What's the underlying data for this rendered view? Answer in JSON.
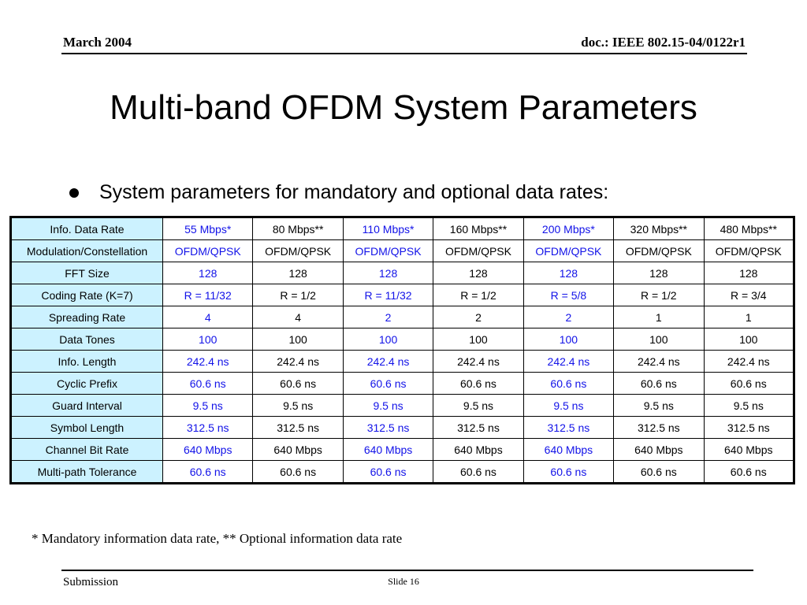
{
  "header": {
    "date": "March 2004",
    "doc_id": "doc.: IEEE 802.15-04/0122r1"
  },
  "title": "Multi-band OFDM System Parameters",
  "bullet": "System parameters for mandatory and optional data rates:",
  "table": {
    "columns": [
      {
        "mandatory": false
      },
      {
        "mandatory": true
      },
      {
        "mandatory": false
      },
      {
        "mandatory": true
      },
      {
        "mandatory": false
      },
      {
        "mandatory": true
      },
      {
        "mandatory": false
      },
      {
        "mandatory": false
      }
    ],
    "rows": [
      {
        "label": "Info. Data Rate",
        "cells": [
          "55 Mbps*",
          "80 Mbps**",
          "110 Mbps*",
          "160 Mbps**",
          "200 Mbps*",
          "320 Mbps**",
          "480 Mbps**"
        ]
      },
      {
        "label": "Modulation/Constellation",
        "cells": [
          "OFDM/QPSK",
          "OFDM/QPSK",
          "OFDM/QPSK",
          "OFDM/QPSK",
          "OFDM/QPSK",
          "OFDM/QPSK",
          "OFDM/QPSK"
        ]
      },
      {
        "label": "FFT Size",
        "cells": [
          "128",
          "128",
          "128",
          "128",
          "128",
          "128",
          "128"
        ]
      },
      {
        "label": "Coding Rate (K=7)",
        "cells": [
          "R = 11/32",
          "R = 1/2",
          "R = 11/32",
          "R = 1/2",
          "R = 5/8",
          "R = 1/2",
          "R = 3/4"
        ]
      },
      {
        "label": "Spreading Rate",
        "cells": [
          "4",
          "4",
          "2",
          "2",
          "2",
          "1",
          "1"
        ]
      },
      {
        "label": "Data Tones",
        "cells": [
          "100",
          "100",
          "100",
          "100",
          "100",
          "100",
          "100"
        ]
      },
      {
        "label": "Info. Length",
        "cells": [
          "242.4 ns",
          "242.4 ns",
          "242.4 ns",
          "242.4 ns",
          "242.4 ns",
          "242.4 ns",
          "242.4 ns"
        ]
      },
      {
        "label": "Cyclic Prefix",
        "cells": [
          "60.6 ns",
          "60.6 ns",
          "60.6 ns",
          "60.6 ns",
          "60.6 ns",
          "60.6 ns",
          "60.6 ns"
        ]
      },
      {
        "label": "Guard Interval",
        "cells": [
          "9.5 ns",
          "9.5 ns",
          "9.5 ns",
          "9.5 ns",
          "9.5 ns",
          "9.5 ns",
          "9.5 ns"
        ]
      },
      {
        "label": "Symbol Length",
        "cells": [
          "312.5 ns",
          "312.5 ns",
          "312.5 ns",
          "312.5 ns",
          "312.5 ns",
          "312.5 ns",
          "312.5 ns"
        ]
      },
      {
        "label": "Channel Bit Rate",
        "cells": [
          "640 Mbps",
          "640 Mbps",
          "640 Mbps",
          "640 Mbps",
          "640 Mbps",
          "640 Mbps",
          "640 Mbps"
        ]
      },
      {
        "label": "Multi-path Tolerance",
        "cells": [
          "60.6 ns",
          "60.6 ns",
          "60.6 ns",
          "60.6 ns",
          "60.6 ns",
          "60.6 ns",
          "60.6 ns"
        ]
      }
    ]
  },
  "footnote": "* Mandatory information data rate, ** Optional information data rate",
  "footer": {
    "left": "Submission",
    "slide": "Slide 16"
  },
  "colors": {
    "label_bg": "#ccf2ff",
    "mandatory_text": "#1212e8"
  }
}
